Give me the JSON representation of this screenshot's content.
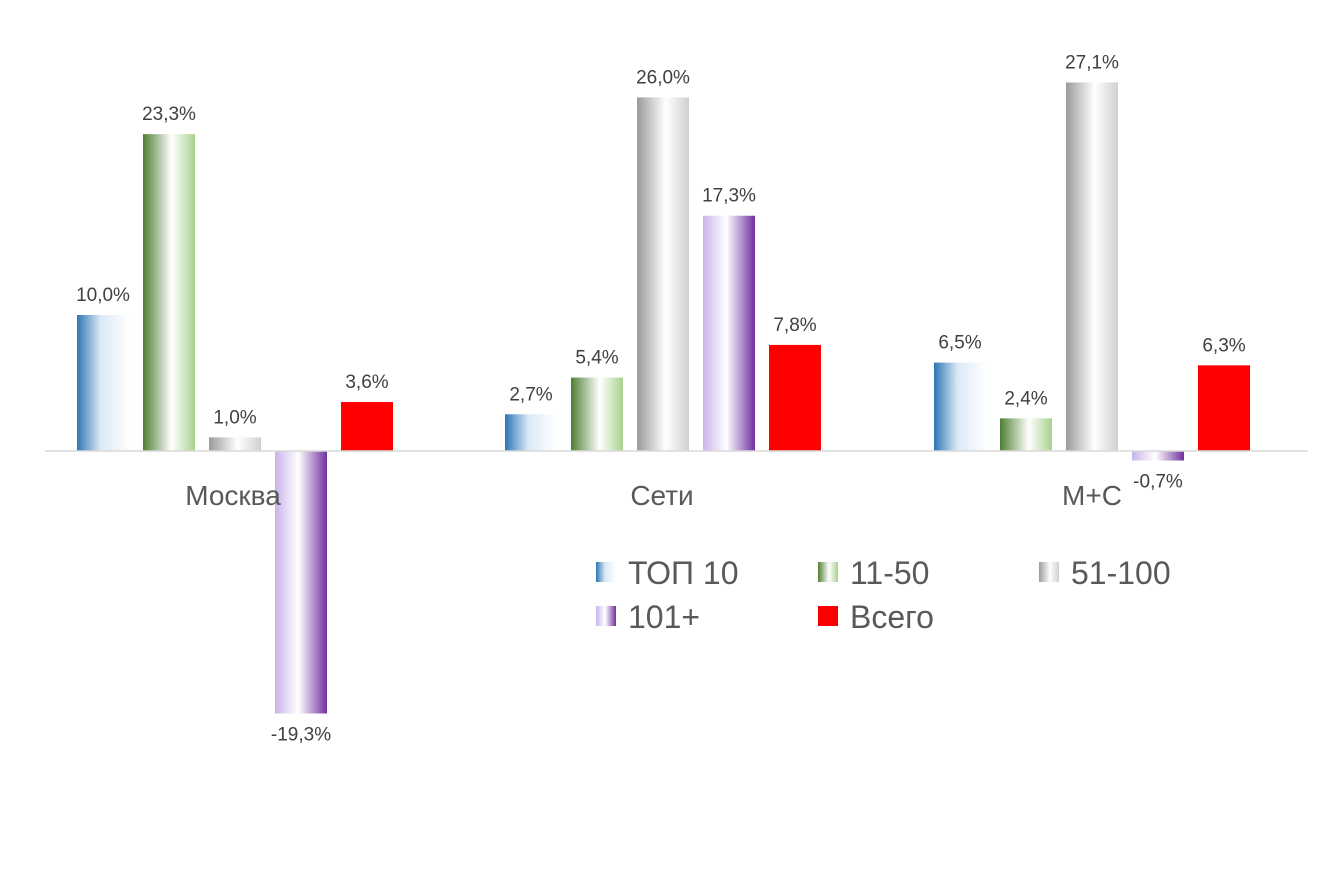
{
  "chart_data": {
    "type": "bar",
    "categories": [
      "Москва",
      "Сети",
      "М+С"
    ],
    "series": [
      {
        "name": "ТОП 10",
        "values": [
          10.0,
          2.7,
          6.5
        ],
        "labels": [
          "10,0%",
          "2,7%",
          "6,5%"
        ],
        "color": "#2e75b6"
      },
      {
        "name": "11-50",
        "values": [
          23.3,
          5.4,
          2.4
        ],
        "labels": [
          "23,3%",
          "5,4%",
          "2,4%"
        ],
        "color": "#548235"
      },
      {
        "name": "51-100",
        "values": [
          1.0,
          26.0,
          27.1
        ],
        "labels": [
          "1,0%",
          "26,0%",
          "27,1%"
        ],
        "color": "#a6a6a6"
      },
      {
        "name": "101+",
        "values": [
          -19.3,
          17.3,
          -0.7
        ],
        "labels": [
          "-19,3%",
          "17,3%",
          "-0,7%"
        ],
        "color": "#7030a0"
      },
      {
        "name": "Всего",
        "values": [
          3.6,
          7.8,
          6.3
        ],
        "labels": [
          "3,6%",
          "7,8%",
          "6,3%"
        ],
        "color": "#ff0000"
      }
    ],
    "ylim": [
      -19.3,
      27.1
    ],
    "legend": "bottom-right",
    "grid": false
  }
}
